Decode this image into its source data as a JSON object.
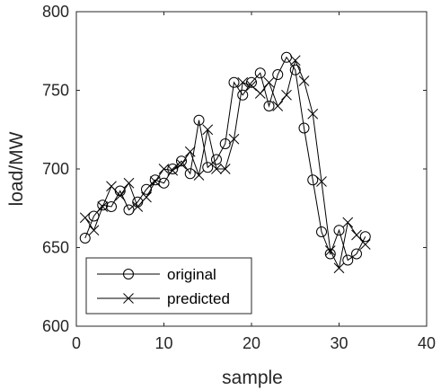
{
  "chart_data": {
    "type": "line",
    "xlabel": "sample",
    "ylabel": "load/MW",
    "xlim": [
      0,
      40
    ],
    "ylim": [
      600,
      800
    ],
    "xticks": [
      0,
      10,
      20,
      30,
      40
    ],
    "yticks": [
      600,
      650,
      700,
      750,
      800
    ],
    "grid": false,
    "legend_position": "bottom-left",
    "x": [
      1,
      2,
      3,
      4,
      5,
      6,
      7,
      8,
      9,
      10,
      11,
      12,
      13,
      14,
      15,
      16,
      17,
      18,
      19,
      20,
      21,
      22,
      23,
      24,
      25,
      26,
      27,
      28,
      29,
      30,
      31,
      32,
      33
    ],
    "series": [
      {
        "name": "original",
        "marker": "circle",
        "color": "#000000",
        "values": [
          656,
          670,
          677,
          676,
          686,
          674,
          679,
          687,
          693,
          691,
          700,
          705,
          697,
          731,
          701,
          706,
          716,
          755,
          747,
          755,
          761,
          740,
          760,
          771,
          763,
          726,
          693,
          660,
          646,
          661,
          642,
          646,
          657
        ]
      },
      {
        "name": "predicted",
        "marker": "x",
        "color": "#000000",
        "values": [
          669,
          661,
          676,
          689,
          683,
          691,
          676,
          682,
          692,
          700,
          699,
          703,
          711,
          696,
          725,
          700,
          700,
          719,
          755,
          753,
          748,
          755,
          740,
          747,
          769,
          756,
          735,
          692,
          648,
          637,
          666,
          658,
          652
        ]
      }
    ]
  }
}
